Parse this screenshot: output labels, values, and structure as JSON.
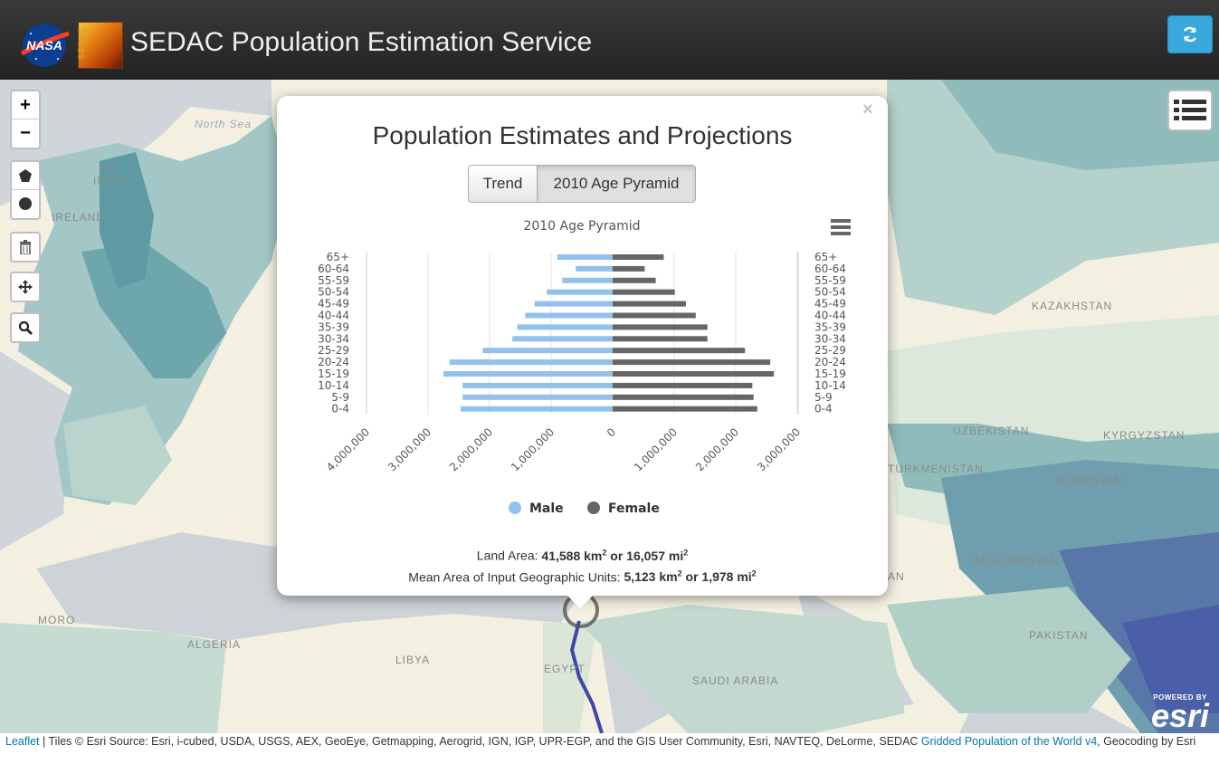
{
  "header": {
    "title": "SEDAC Population Estimation Service",
    "nasa_logo_text": "NASA",
    "sedac_logo_text": "SEDAC",
    "refresh_icon": "refresh-icon"
  },
  "map_controls": {
    "zoom_in": "+",
    "zoom_out": "−",
    "draw_polygon_icon": "polygon-icon",
    "draw_circle_icon": "circle-icon",
    "delete_icon": "trash-icon",
    "edit_icon": "move-icon",
    "search_icon": "search-icon",
    "layers_icon": "list-icon"
  },
  "map_labels": {
    "north_sea": "North Sea",
    "uk_fragment": "UN",
    "ingdo": "INGDO",
    "ireland": "IRELAND",
    "kazakhstan": "KAZAKHSTAN",
    "uzbekistan": "UZBEKISTAN",
    "kyrgyzstan": "KYRGYZSTAN",
    "turkmenistan": "TURKMENISTAN",
    "tajikistan": "TAJIKISTAN",
    "afghanistan": "AFGHANISTAN",
    "pakistan": "PAKISTAN",
    "morocco_fragment": "MORO",
    "algeria": "ALGERIA",
    "libya": "LIBYA",
    "egypt": "EGYPT",
    "saudi_arabia": "SAUDI ARABIA",
    "an_fragment": "AN"
  },
  "popup": {
    "close": "×",
    "title": "Population Estimates and Projections",
    "tabs": [
      {
        "label": "Trend",
        "active": false
      },
      {
        "label": "2010 Age Pyramid",
        "active": true
      }
    ],
    "land_area_label": "Land Area: ",
    "land_area_km": "41,588 km",
    "land_area_or": " or 16,057 mi",
    "mean_area_label": "Mean Area of Input Geographic Units: ",
    "mean_area_km": "5,123 km",
    "mean_area_or": " or 1,978 mi",
    "superscript": "2"
  },
  "chart_data": {
    "type": "bar",
    "orientation": "horizontal-pyramid",
    "title": "2010 Age Pyramid",
    "categories": [
      "65+",
      "60-64",
      "55-59",
      "50-54",
      "45-49",
      "40-44",
      "35-39",
      "30-34",
      "25-29",
      "20-24",
      "15-19",
      "10-14",
      "5-9",
      "0-4"
    ],
    "series": [
      {
        "name": "Male",
        "color": "#92c1ec",
        "values": [
          900000,
          600000,
          820000,
          1070000,
          1270000,
          1420000,
          1550000,
          1630000,
          2110000,
          2650000,
          2750000,
          2440000,
          2440000,
          2470000
        ]
      },
      {
        "name": "Female",
        "color": "#666666",
        "values": [
          830000,
          520000,
          700000,
          1010000,
          1190000,
          1350000,
          1540000,
          1540000,
          2150000,
          2560000,
          2620000,
          2270000,
          2290000,
          2350000
        ]
      }
    ],
    "x_ticks_left": [
      "4,000,000",
      "3,000,000",
      "2,000,000",
      "1,000,000",
      "0"
    ],
    "x_ticks_right": [
      "1,000,000",
      "2,000,000",
      "3,000,000"
    ],
    "xlim_left": [
      0,
      4000000
    ],
    "xlim_right": [
      0,
      3000000
    ],
    "legend": [
      "Male",
      "Female"
    ],
    "legend_position": "bottom",
    "grid": true
  },
  "attribution": {
    "leaflet": "Leaflet",
    "text": " | Tiles © Esri Source: Esri, i-cubed, USDA, USGS, AEX, GeoEye, Getmapping, Aerogrid, IGN, IGP, UPR-EGP, and the GIS User Community, Esri, NAVTEQ, DeLorme, SEDAC ",
    "gpw_link": "Gridded Population of the World v4",
    "text2": ", Geocoding by Esri"
  },
  "esri": {
    "powered_by": "POWERED BY",
    "logo": "esri"
  }
}
